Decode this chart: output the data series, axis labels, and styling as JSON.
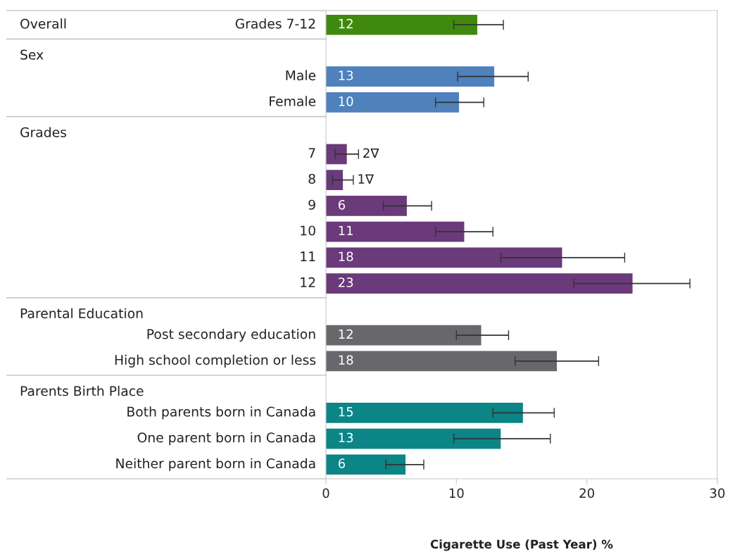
{
  "chart_data": {
    "type": "bar",
    "orientation": "horizontal",
    "xlabel": "Cigarette Use (Past Year) %",
    "categories": [
      "Grades 7-12",
      null,
      "Male",
      "Female",
      null,
      "7",
      "8",
      "9",
      "10",
      "11",
      "12",
      null,
      "Post secondary education",
      "High school completion or less",
      null,
      "Both parents born in Canada",
      "One parent born in Canada",
      "Neither parent born in Canada"
    ],
    "values": [
      11.6,
      null,
      12.9,
      10.2,
      null,
      1.6,
      1.3,
      6.2,
      10.6,
      18.1,
      23.5,
      null,
      11.9,
      17.7,
      null,
      15.1,
      13.4,
      6.1
    ],
    "errors": [
      [
        9.8,
        13.6
      ],
      null,
      [
        10.1,
        15.5
      ],
      [
        8.4,
        12.1
      ],
      null,
      [
        0.7,
        2.5
      ],
      [
        0.5,
        2.1
      ],
      [
        4.4,
        8.1
      ],
      [
        8.4,
        12.8
      ],
      [
        13.4,
        22.9
      ],
      [
        19.0,
        27.9
      ],
      null,
      [
        10.0,
        14.0
      ],
      [
        14.5,
        20.9
      ],
      null,
      [
        12.8,
        17.5
      ],
      [
        9.8,
        17.2
      ],
      [
        4.6,
        7.5
      ]
    ],
    "value_labels": [
      "12",
      null,
      "13",
      "10",
      null,
      "2∇",
      "1∇",
      "6",
      "11",
      "18",
      "23",
      null,
      "12",
      "18",
      null,
      "15",
      "13",
      "6"
    ],
    "colors": [
      "#3f8a0e",
      null,
      "#4f81bd",
      "#4f81bd",
      null,
      "#6a3a7a",
      "#6a3a7a",
      "#6a3a7a",
      "#6a3a7a",
      "#6a3a7a",
      "#6a3a7a",
      null,
      "#68686c",
      "#68686c",
      null,
      "#0b8585",
      "#0b8585",
      "#0b8585"
    ],
    "annotations": [
      "Overall",
      "Sex",
      "Grades",
      "Parental Education",
      "Parents Birth Place"
    ],
    "xlim": [
      0,
      30
    ],
    "xticks": [
      0,
      10,
      20,
      30
    ],
    "grid": false
  }
}
